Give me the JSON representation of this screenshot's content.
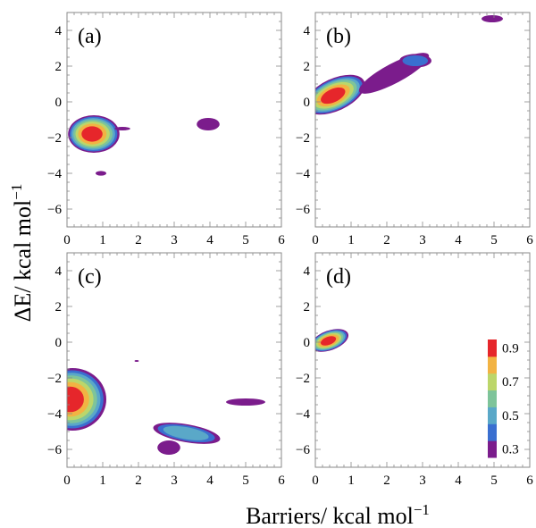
{
  "chart_data": {
    "type": "contour",
    "xlabel": "Barriers/ kcal mol",
    "xlabel_exp": "−1",
    "ylabel": "ΔE/ kcal mol",
    "ylabel_exp": "−1",
    "xlim": [
      0,
      6
    ],
    "ylim": [
      -7,
      5
    ],
    "x_ticks": [
      0,
      1,
      2,
      3,
      4,
      5,
      6
    ],
    "y_ticks": [
      4,
      2,
      0,
      -2,
      -4,
      -6
    ],
    "grid": false,
    "legend": {
      "type": "colorbar",
      "placement": "inside panel (d), right",
      "levels": [
        0.3,
        0.4,
        0.5,
        0.6,
        0.7,
        0.8,
        0.9
      ],
      "labels": [
        "0.9",
        "0.7",
        "0.5",
        "0.3"
      ],
      "colors": [
        "#7B1C8C",
        "#3A6FD0",
        "#5AA8C8",
        "#7EC49A",
        "#BCD66A",
        "#F2B343",
        "#E6262B"
      ]
    },
    "panels": [
      {
        "label": "(a)",
        "blobs": [
          {
            "cx": 0.75,
            "cy": -1.8,
            "rx": 0.72,
            "ry": 1.05,
            "peak": 0.9
          },
          {
            "cx": 3.95,
            "cy": -1.25,
            "rx": 0.32,
            "ry": 0.35,
            "peak": 0.3
          },
          {
            "cx": 0.95,
            "cy": -4.0,
            "rx": 0.15,
            "ry": 0.13,
            "peak": 0.3
          },
          {
            "cx": 1.55,
            "cy": -1.5,
            "rx": 0.22,
            "ry": 0.1,
            "peak": 0.3
          }
        ]
      },
      {
        "label": "(b)",
        "blobs": [
          {
            "cx": 0.55,
            "cy": 0.4,
            "rx": 0.9,
            "ry": 0.9,
            "peak": 0.9,
            "angle": 25
          },
          {
            "cx": 2.2,
            "cy": 1.6,
            "rx": 1.1,
            "ry": 0.55,
            "peak": 0.3,
            "angle": 28
          },
          {
            "cx": 2.8,
            "cy": 2.3,
            "rx": 0.45,
            "ry": 0.38,
            "peak": 0.45
          },
          {
            "cx": 4.95,
            "cy": 4.65,
            "rx": 0.3,
            "ry": 0.2,
            "peak": 0.3
          }
        ]
      },
      {
        "label": "(c)",
        "blobs": [
          {
            "cx": 0.15,
            "cy": -3.2,
            "rx": 0.95,
            "ry": 1.75,
            "peak": 0.9
          },
          {
            "cx": 3.35,
            "cy": -5.1,
            "rx": 0.95,
            "ry": 0.5,
            "peak": 0.55,
            "angle": -10
          },
          {
            "cx": 2.85,
            "cy": -5.9,
            "rx": 0.32,
            "ry": 0.4,
            "peak": 0.3
          },
          {
            "cx": 5.0,
            "cy": -3.35,
            "rx": 0.55,
            "ry": 0.2,
            "peak": 0.3
          },
          {
            "cx": 1.95,
            "cy": -1.05,
            "rx": 0.06,
            "ry": 0.05,
            "peak": 0.3
          }
        ]
      },
      {
        "label": "(d)",
        "blobs": [
          {
            "cx": 0.4,
            "cy": 0.1,
            "rx": 0.55,
            "ry": 0.55,
            "peak": 0.9,
            "angle": 20
          }
        ]
      }
    ]
  }
}
